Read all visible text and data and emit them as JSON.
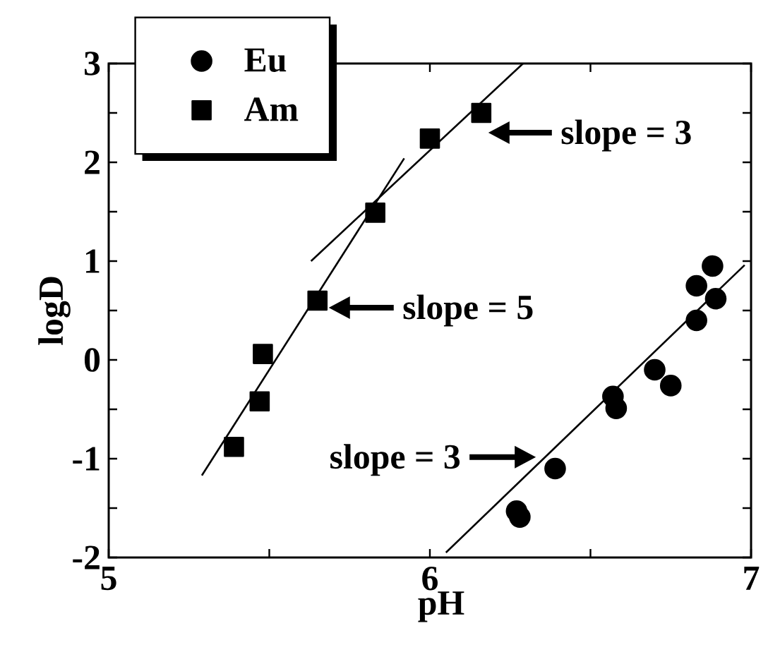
{
  "chart_data": {
    "type": "scatter",
    "xlabel": "pH",
    "ylabel": "logD",
    "xlim": [
      5,
      7
    ],
    "ylim": [
      -2,
      3
    ],
    "xticks": [
      5,
      {
        "value": 5.5,
        "label": null
      },
      6,
      {
        "value": 6.5,
        "label": null
      },
      7
    ],
    "yticks": [
      -2,
      {
        "value": -1.5,
        "label": null
      },
      -1,
      {
        "value": -0.5,
        "label": null
      },
      0,
      {
        "value": 0.5,
        "label": null
      },
      1,
      {
        "value": 1.5,
        "label": null
      },
      2,
      {
        "value": 2.5,
        "label": null
      },
      3
    ],
    "legend": "top left",
    "series": [
      {
        "name": "Eu",
        "color": "#000000",
        "marker": "circle",
        "x": [
          6.27,
          6.28,
          6.39,
          6.57,
          6.58,
          6.7,
          6.75,
          6.83,
          6.83,
          6.88,
          6.89
        ],
        "values": [
          -1.53,
          -1.59,
          -1.1,
          -0.37,
          -0.49,
          -0.1,
          -0.26,
          0.4,
          0.75,
          0.95,
          0.62
        ]
      },
      {
        "name": "Am",
        "color": "#000000",
        "marker": "square",
        "x": [
          5.39,
          5.47,
          5.48,
          5.65,
          5.83,
          6.0,
          6.16
        ],
        "values": [
          -0.88,
          -0.42,
          0.06,
          0.6,
          1.49,
          2.24,
          2.5
        ]
      },
      {
        "type": "line",
        "color": "#000000",
        "marker": "none",
        "x": [
          5.29,
          5.92
        ],
        "values": [
          -1.17,
          2.04
        ]
      },
      {
        "type": "line",
        "color": "#000000",
        "marker": "none",
        "x": [
          5.63,
          6.29
        ],
        "values": [
          1.0,
          3.0
        ]
      },
      {
        "type": "line",
        "color": "#000000",
        "marker": "none",
        "x": [
          6.05,
          6.98
        ],
        "values": [
          -1.95,
          0.96
        ]
      }
    ],
    "annotations": [
      {
        "text": "slope = 3",
        "x": 6.16,
        "y": 2.5
      },
      {
        "text": "slope = 5",
        "x": 5.65,
        "y": 0.6
      },
      {
        "text": "slope = 3",
        "x": 6.33,
        "y": -1.07
      }
    ]
  }
}
